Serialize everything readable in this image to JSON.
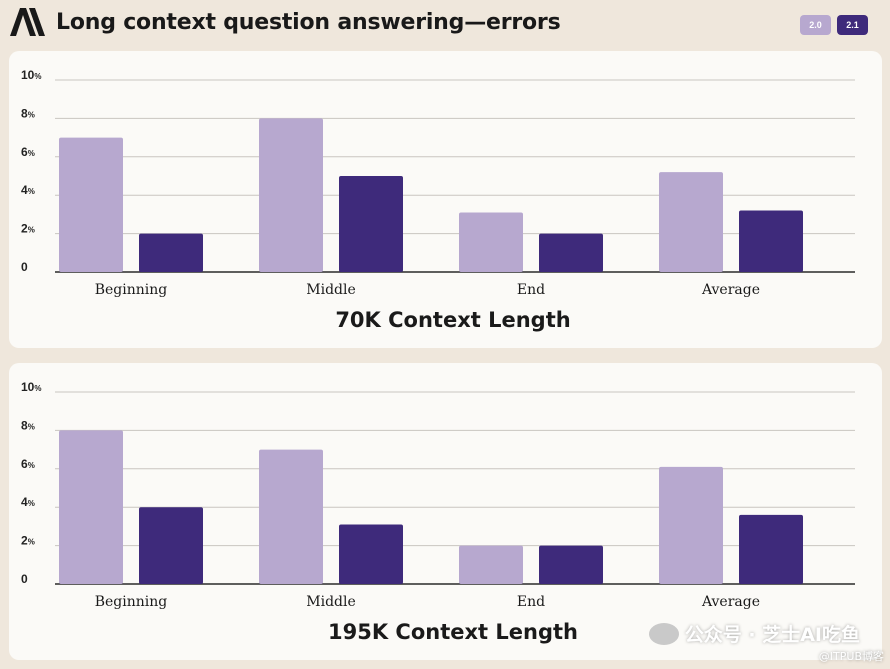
{
  "header": {
    "title": "Long context question answering—errors",
    "legend": [
      {
        "label": "2.0",
        "color": "#b7a8cf"
      },
      {
        "label": "2.1",
        "color": "#3e2a7b"
      }
    ]
  },
  "colors": {
    "series_2_0": "#b7a8cf",
    "series_2_1": "#3e2a7b",
    "grid": "#c9c5c0",
    "background": "#efe7dc",
    "panel": "#fbfaf7"
  },
  "watermark": {
    "text": "公众号 · 芝士AI吃鱼",
    "sub": "@ITPUB博客"
  },
  "chart_data": [
    {
      "type": "bar",
      "title": "70K Context Length",
      "categories": [
        "Beginning",
        "Middle",
        "End",
        "Average"
      ],
      "series": [
        {
          "name": "2.0",
          "values": [
            7,
            8,
            3.1,
            5.2
          ]
        },
        {
          "name": "2.1",
          "values": [
            2,
            5,
            2,
            3.2
          ]
        }
      ],
      "yticks": [
        "0",
        "2%",
        "4%",
        "6%",
        "8%",
        "10%"
      ],
      "ylim": [
        0,
        10
      ],
      "grid": true,
      "legend": "top-right"
    },
    {
      "type": "bar",
      "title": "195K Context Length",
      "categories": [
        "Beginning",
        "Middle",
        "End",
        "Average"
      ],
      "series": [
        {
          "name": "2.0",
          "values": [
            8,
            7,
            2,
            6.1
          ]
        },
        {
          "name": "2.1",
          "values": [
            4,
            3.1,
            2,
            3.6
          ]
        }
      ],
      "yticks": [
        "0",
        "2%",
        "4%",
        "6%",
        "8%",
        "10%"
      ],
      "ylim": [
        0,
        10
      ],
      "grid": true,
      "legend": "top-right"
    }
  ]
}
